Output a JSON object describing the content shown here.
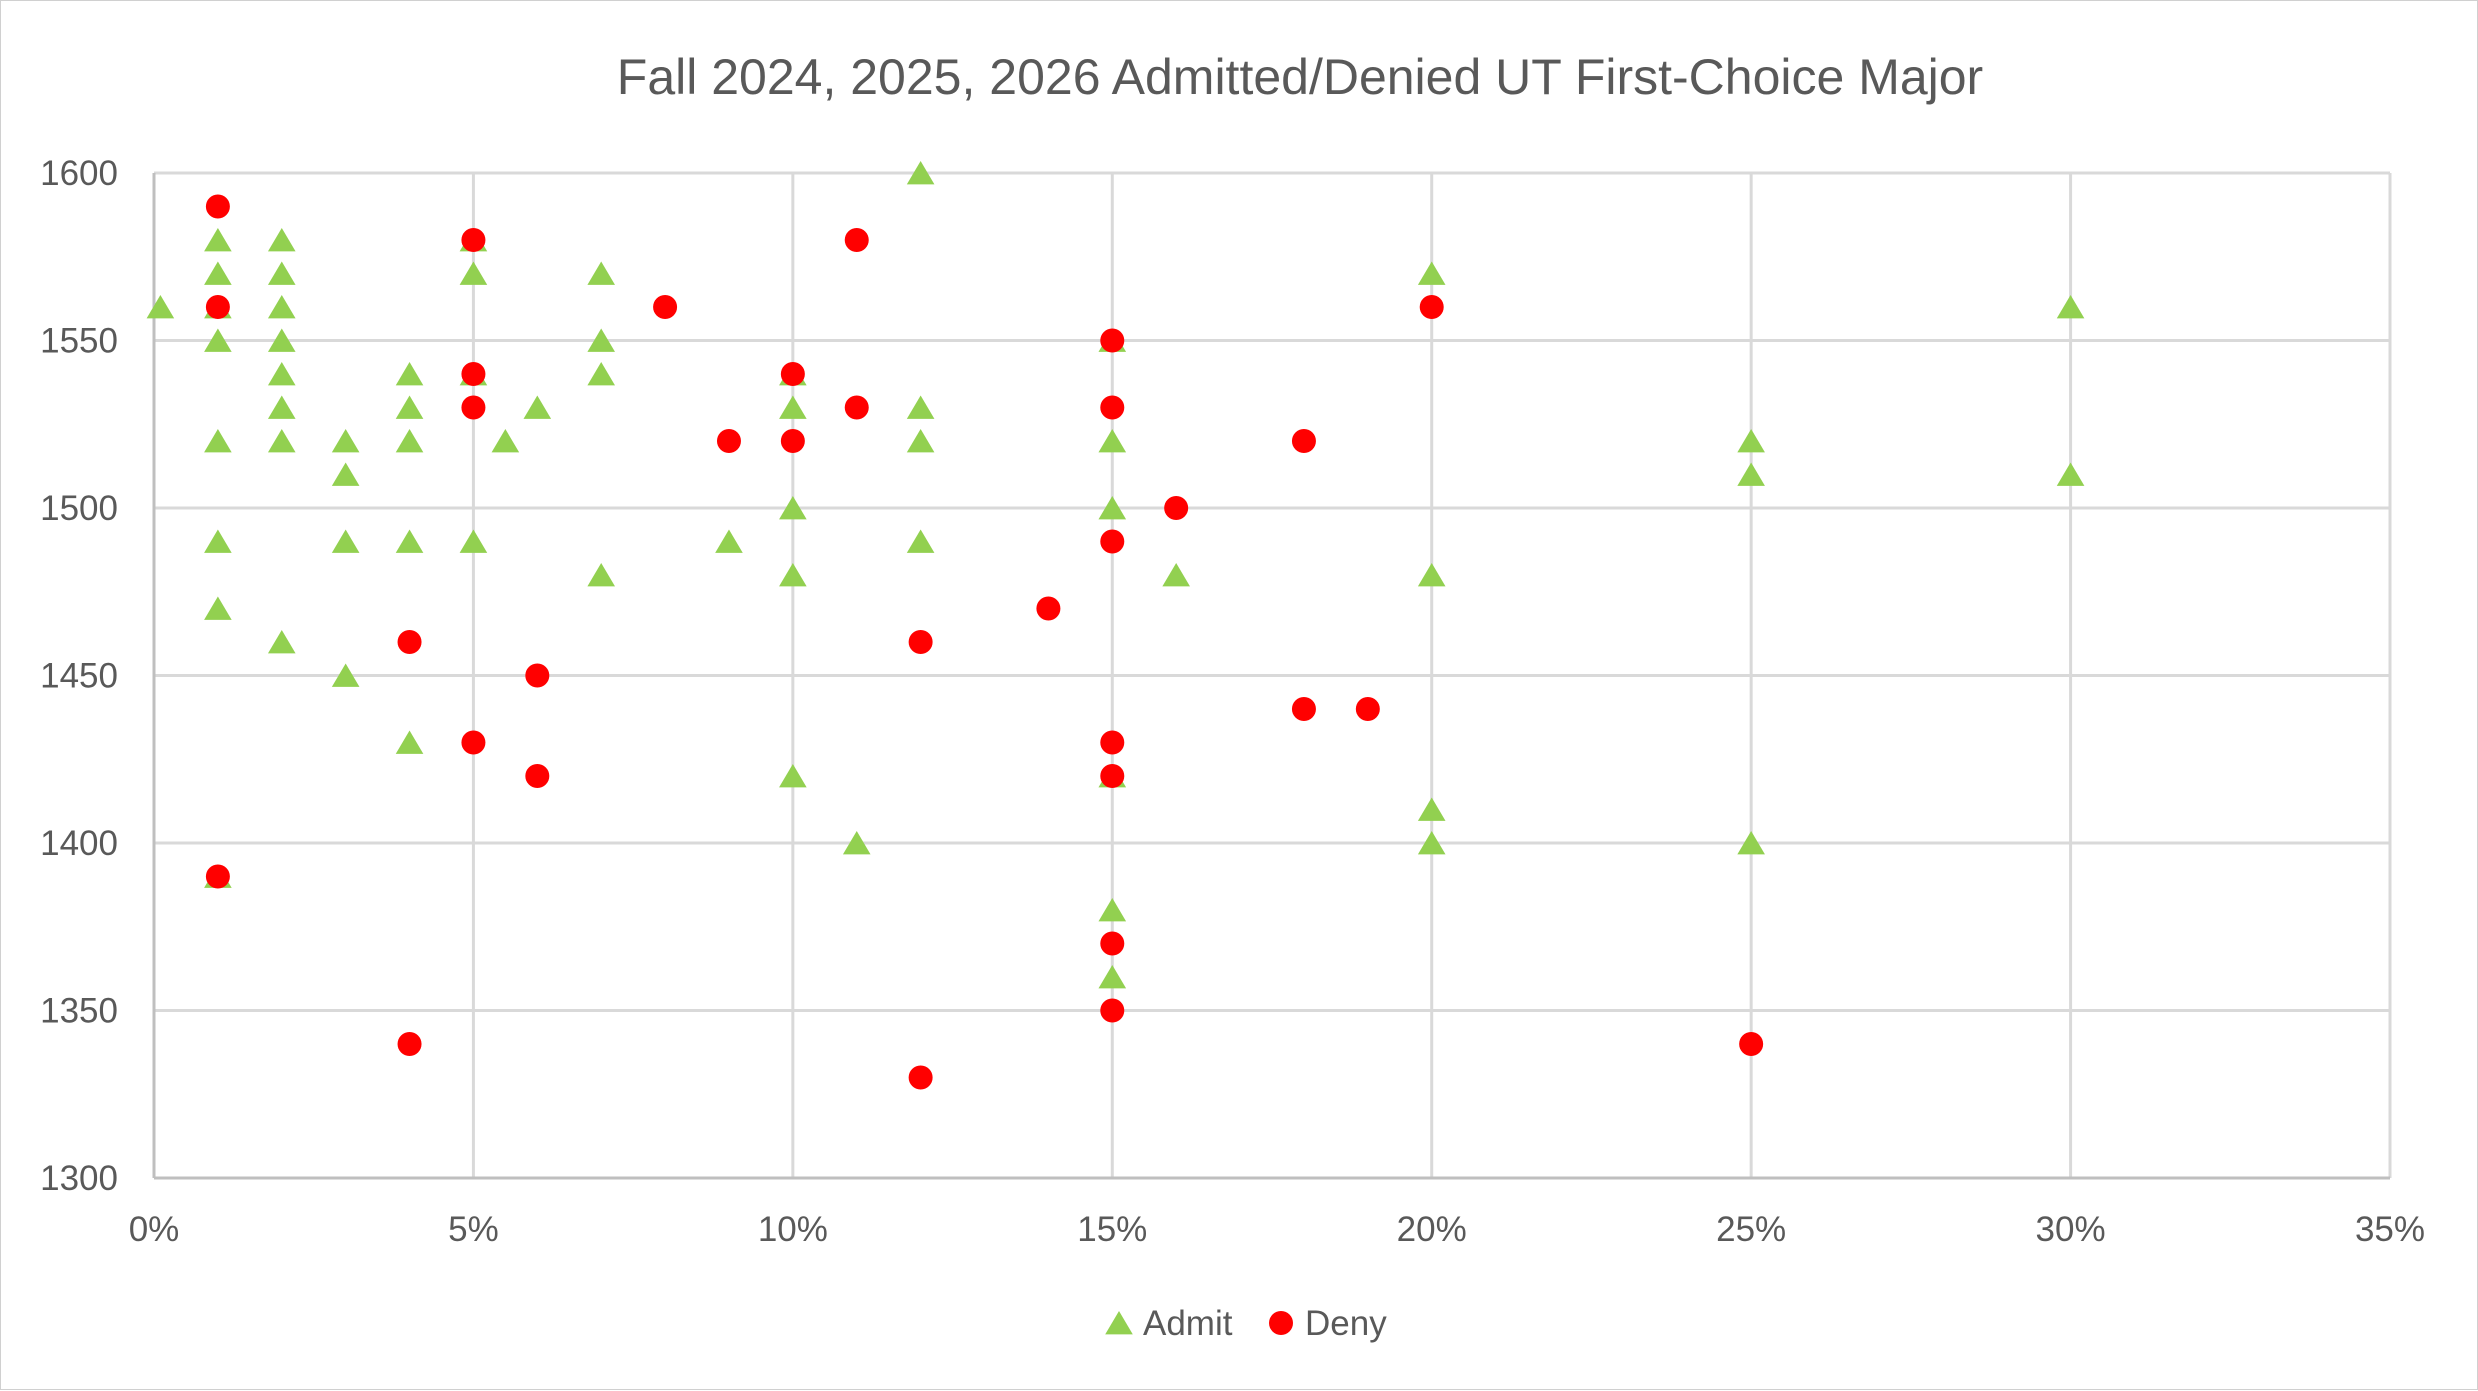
{
  "chart_data": {
    "type": "scatter",
    "title": "Fall 2024, 2025, 2026 Admitted/Denied UT First-Choice Major",
    "xlabel": "",
    "ylabel": "",
    "xlim": [
      0,
      0.35
    ],
    "ylim": [
      1300,
      1600
    ],
    "x_ticks": [
      0,
      0.05,
      0.1,
      0.15,
      0.2,
      0.25,
      0.3,
      0.35
    ],
    "x_tick_labels": [
      "0%",
      "5%",
      "10%",
      "15%",
      "20%",
      "25%",
      "30%",
      "35%"
    ],
    "y_ticks": [
      1300,
      1350,
      1400,
      1450,
      1500,
      1550,
      1600
    ],
    "y_tick_labels": [
      "1300",
      "1350",
      "1400",
      "1450",
      "1500",
      "1550",
      "1600"
    ],
    "grid": true,
    "legend_position": "bottom",
    "series": [
      {
        "name": "Admit",
        "marker": "triangle",
        "color": "#92D050",
        "points": [
          [
            0.001,
            1560
          ],
          [
            0.01,
            1580
          ],
          [
            0.01,
            1570
          ],
          [
            0.01,
            1560
          ],
          [
            0.01,
            1550
          ],
          [
            0.01,
            1520
          ],
          [
            0.01,
            1490
          ],
          [
            0.01,
            1470
          ],
          [
            0.01,
            1390
          ],
          [
            0.02,
            1580
          ],
          [
            0.02,
            1570
          ],
          [
            0.02,
            1560
          ],
          [
            0.02,
            1550
          ],
          [
            0.02,
            1540
          ],
          [
            0.02,
            1530
          ],
          [
            0.02,
            1520
          ],
          [
            0.02,
            1460
          ],
          [
            0.03,
            1520
          ],
          [
            0.03,
            1510
          ],
          [
            0.03,
            1490
          ],
          [
            0.03,
            1450
          ],
          [
            0.04,
            1540
          ],
          [
            0.04,
            1530
          ],
          [
            0.04,
            1520
          ],
          [
            0.04,
            1490
          ],
          [
            0.04,
            1430
          ],
          [
            0.05,
            1580
          ],
          [
            0.05,
            1570
          ],
          [
            0.05,
            1540
          ],
          [
            0.05,
            1490
          ],
          [
            0.055,
            1520
          ],
          [
            0.06,
            1530
          ],
          [
            0.07,
            1570
          ],
          [
            0.07,
            1550
          ],
          [
            0.07,
            1540
          ],
          [
            0.07,
            1480
          ],
          [
            0.09,
            1490
          ],
          [
            0.1,
            1540
          ],
          [
            0.1,
            1530
          ],
          [
            0.1,
            1500
          ],
          [
            0.1,
            1480
          ],
          [
            0.1,
            1420
          ],
          [
            0.11,
            1400
          ],
          [
            0.12,
            1600
          ],
          [
            0.12,
            1530
          ],
          [
            0.12,
            1520
          ],
          [
            0.12,
            1490
          ],
          [
            0.15,
            1550
          ],
          [
            0.15,
            1520
          ],
          [
            0.15,
            1500
          ],
          [
            0.15,
            1420
          ],
          [
            0.15,
            1380
          ],
          [
            0.15,
            1360
          ],
          [
            0.16,
            1480
          ],
          [
            0.2,
            1570
          ],
          [
            0.2,
            1480
          ],
          [
            0.2,
            1410
          ],
          [
            0.2,
            1400
          ],
          [
            0.25,
            1520
          ],
          [
            0.25,
            1510
          ],
          [
            0.25,
            1400
          ],
          [
            0.3,
            1560
          ],
          [
            0.3,
            1510
          ]
        ]
      },
      {
        "name": "Deny",
        "marker": "circle",
        "color": "#FF0000",
        "points": [
          [
            0.01,
            1590
          ],
          [
            0.01,
            1560
          ],
          [
            0.01,
            1390
          ],
          [
            0.04,
            1460
          ],
          [
            0.04,
            1340
          ],
          [
            0.05,
            1580
          ],
          [
            0.05,
            1540
          ],
          [
            0.05,
            1530
          ],
          [
            0.05,
            1430
          ],
          [
            0.06,
            1450
          ],
          [
            0.06,
            1420
          ],
          [
            0.08,
            1560
          ],
          [
            0.09,
            1520
          ],
          [
            0.1,
            1540
          ],
          [
            0.1,
            1520
          ],
          [
            0.11,
            1580
          ],
          [
            0.11,
            1530
          ],
          [
            0.12,
            1460
          ],
          [
            0.12,
            1330
          ],
          [
            0.14,
            1470
          ],
          [
            0.15,
            1550
          ],
          [
            0.15,
            1530
          ],
          [
            0.15,
            1490
          ],
          [
            0.15,
            1430
          ],
          [
            0.15,
            1420
          ],
          [
            0.15,
            1370
          ],
          [
            0.15,
            1350
          ],
          [
            0.16,
            1500
          ],
          [
            0.18,
            1520
          ],
          [
            0.18,
            1440
          ],
          [
            0.19,
            1440
          ],
          [
            0.2,
            1560
          ],
          [
            0.25,
            1340
          ]
        ]
      }
    ]
  }
}
